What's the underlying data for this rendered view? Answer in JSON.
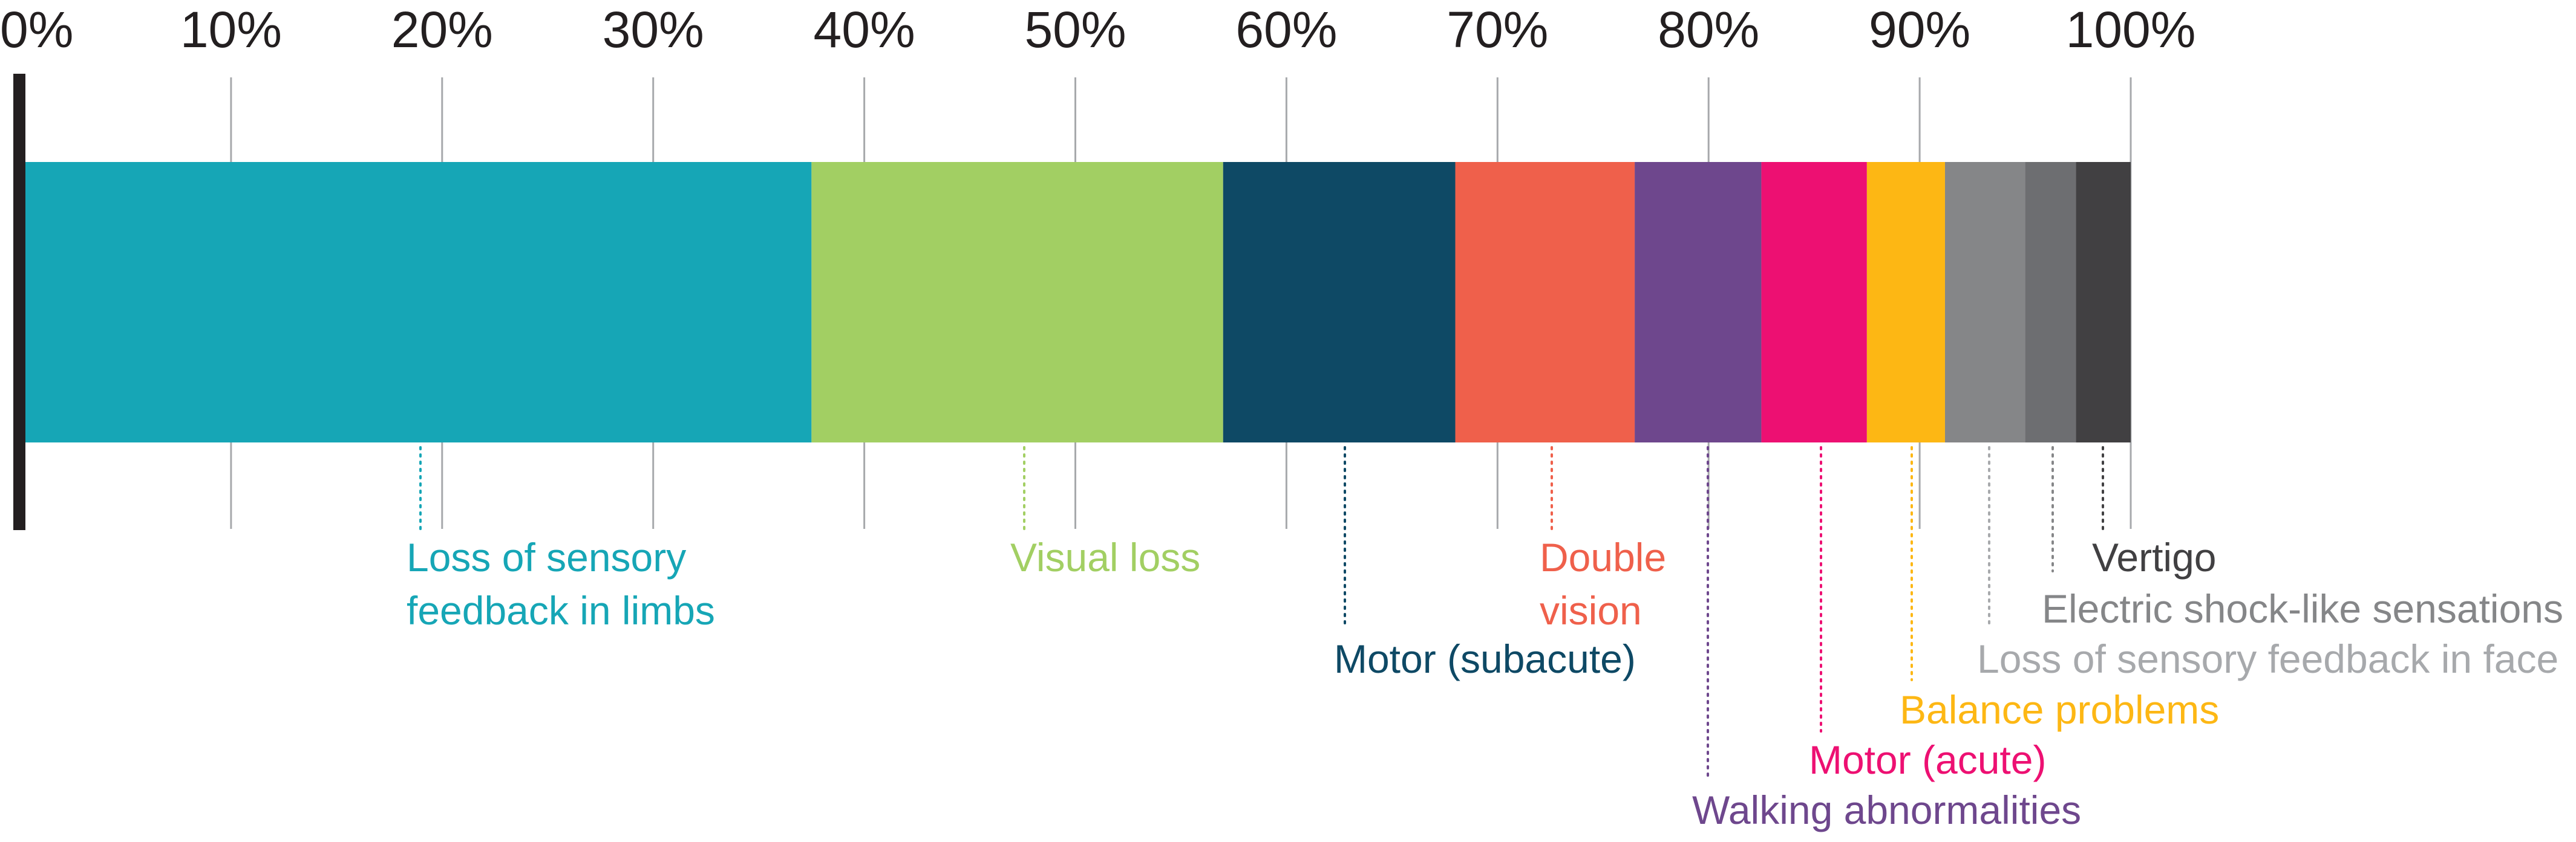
{
  "chart_data": {
    "type": "bar",
    "orientation": "horizontal",
    "stacked": true,
    "title": "",
    "xlabel": "",
    "ylabel": "",
    "xlim": [
      0,
      100
    ],
    "x_ticks": [
      {
        "value": 0,
        "label": "0%"
      },
      {
        "value": 10,
        "label": "10%"
      },
      {
        "value": 20,
        "label": "20%"
      },
      {
        "value": 30,
        "label": "30%"
      },
      {
        "value": 40,
        "label": "40%"
      },
      {
        "value": 50,
        "label": "50%"
      },
      {
        "value": 60,
        "label": "60%"
      },
      {
        "value": 70,
        "label": "70%"
      },
      {
        "value": 80,
        "label": "80%"
      },
      {
        "value": 90,
        "label": "90%"
      },
      {
        "value": 100,
        "label": "100%"
      }
    ],
    "grid": true,
    "legend": "none",
    "series": [
      {
        "name": "Loss of sensory feedback in limbs",
        "label_lines": [
          "Loss of sensory",
          "feedback in limbs"
        ],
        "value": 37.5,
        "color": "#16a6b6"
      },
      {
        "name": "Visual loss",
        "label_lines": [
          "Visual loss"
        ],
        "value": 19.5,
        "color": "#a2cf63"
      },
      {
        "name": "Motor (subacute)",
        "label_lines": [
          "Motor (subacute)"
        ],
        "value": 11.0,
        "color": "#0e4965"
      },
      {
        "name": "Double vision",
        "label_lines": [
          "Double",
          "vision"
        ],
        "value": 8.5,
        "color": "#ef604b"
      },
      {
        "name": "Walking abnormalities",
        "label_lines": [
          "Walking abnormalities"
        ],
        "value": 6.0,
        "color": "#6e478d"
      },
      {
        "name": "Motor (acute)",
        "label_lines": [
          "Motor (acute)"
        ],
        "value": 5.0,
        "color": "#ed1072"
      },
      {
        "name": "Balance problems",
        "label_lines": [
          "Balance problems"
        ],
        "value": 3.7,
        "color": "#fdb714"
      },
      {
        "name": "Loss of sensory feedback in face",
        "label_lines": [
          "Loss of sensory feedback in face"
        ],
        "value": 3.8,
        "color": "#858688"
      },
      {
        "name": "Electric shock-like sensations",
        "label_lines": [
          "Electric shock-like sensations"
        ],
        "value": 2.4,
        "color": "#6d6e71"
      },
      {
        "name": "Vertigo",
        "label_lines": [
          "Vertigo"
        ],
        "value": 2.6,
        "color": "#414042"
      }
    ],
    "label_text_colors": [
      "#16a6b6",
      "#a2cf63",
      "#0e4965",
      "#ef604b",
      "#6e478d",
      "#ed1072",
      "#fdb714",
      "#a7a9ac",
      "#858688",
      "#414042"
    ],
    "colors": {
      "axis": "#231f20",
      "gridline": "#a7a9ac",
      "tick_text": "#231f20"
    }
  }
}
